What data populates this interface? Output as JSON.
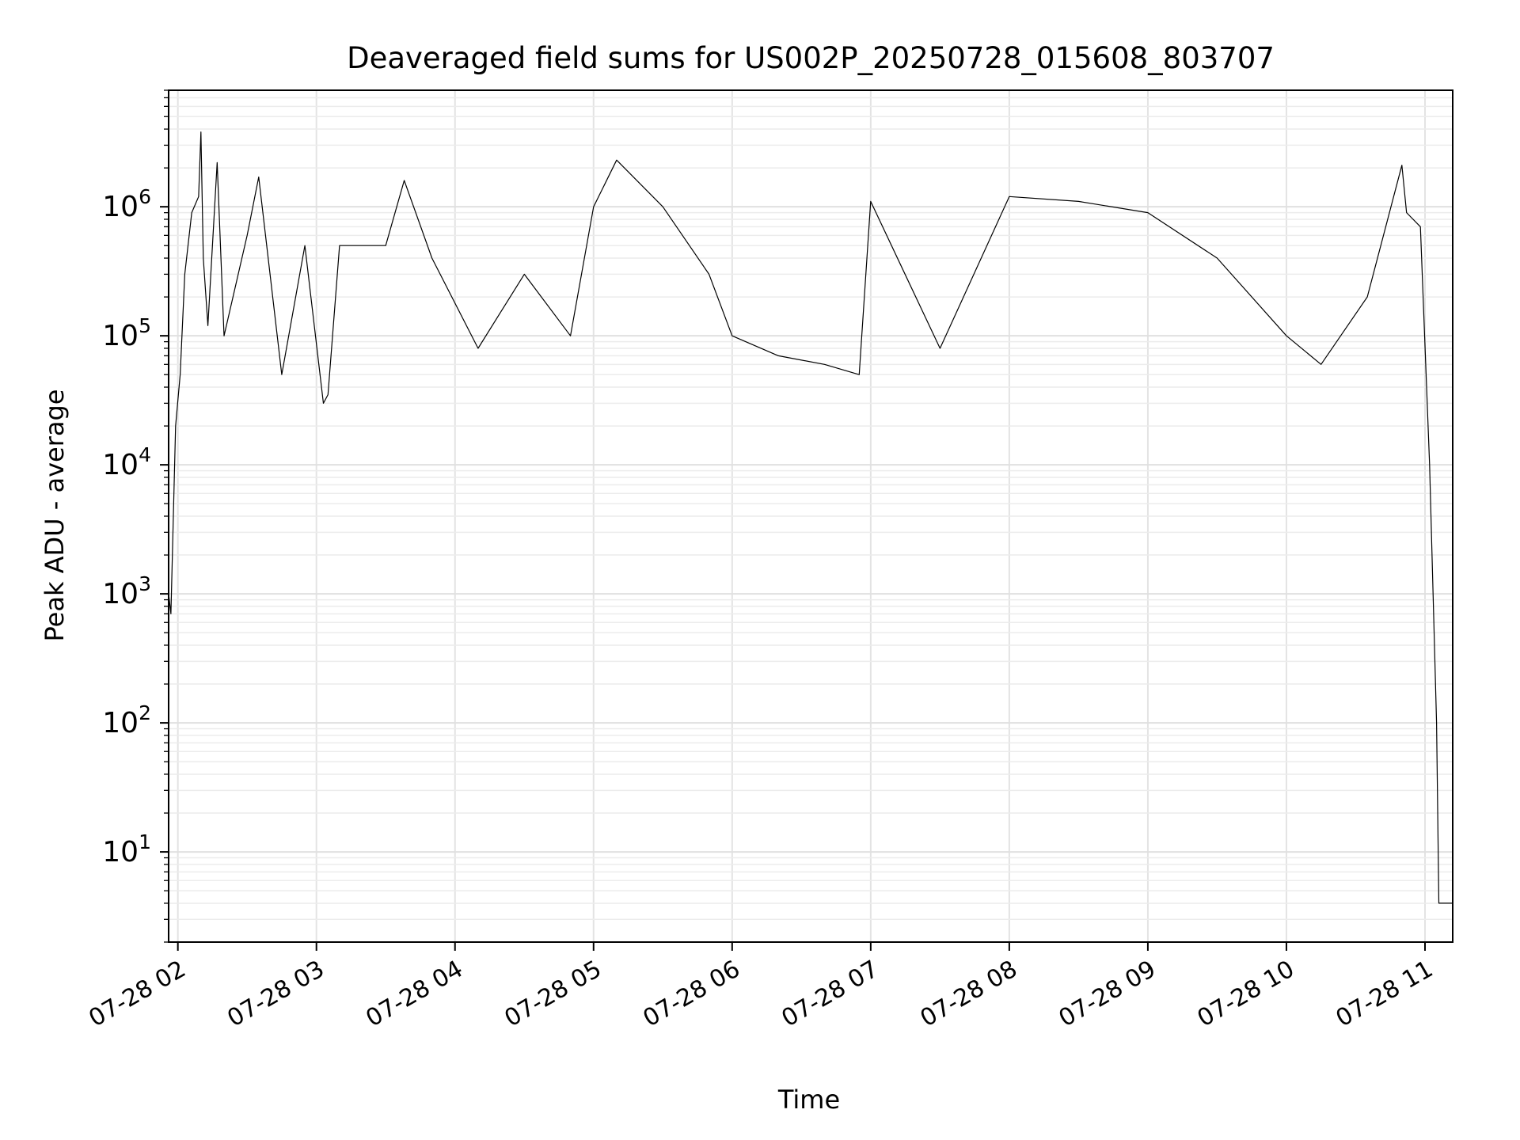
{
  "chart_data": {
    "type": "line",
    "title": "Deaveraged field sums for US002P_20250728_015608_803707",
    "xlabel": "Time",
    "ylabel": "Peak ADU - average",
    "y_scale": "log",
    "ylim": [
      2,
      8000000
    ],
    "xlim": [
      "2025-07-28 01:56",
      "2025-07-28 11:12"
    ],
    "grid": true,
    "line_color": "#000000",
    "x_ticks": [
      {
        "label": "07-28 02",
        "value": "2025-07-28 02:00"
      },
      {
        "label": "07-28 03",
        "value": "2025-07-28 03:00"
      },
      {
        "label": "07-28 04",
        "value": "2025-07-28 04:00"
      },
      {
        "label": "07-28 05",
        "value": "2025-07-28 05:00"
      },
      {
        "label": "07-28 06",
        "value": "2025-07-28 06:00"
      },
      {
        "label": "07-28 07",
        "value": "2025-07-28 07:00"
      },
      {
        "label": "07-28 08",
        "value": "2025-07-28 08:00"
      },
      {
        "label": "07-28 09",
        "value": "2025-07-28 09:00"
      },
      {
        "label": "07-28 10",
        "value": "2025-07-28 10:00"
      },
      {
        "label": "07-28 11",
        "value": "2025-07-28 11:00"
      }
    ],
    "y_ticks": [
      {
        "base": "10",
        "exp": "1",
        "value": 10
      },
      {
        "base": "10",
        "exp": "2",
        "value": 100
      },
      {
        "base": "10",
        "exp": "3",
        "value": 1000
      },
      {
        "base": "10",
        "exp": "4",
        "value": 10000
      },
      {
        "base": "10",
        "exp": "5",
        "value": 100000
      },
      {
        "base": "10",
        "exp": "6",
        "value": 1000000
      }
    ],
    "series": [
      {
        "points": [
          [
            "2025-07-28 01:56",
            100000
          ],
          [
            "2025-07-28 01:56",
            1000
          ],
          [
            "2025-07-28 01:57",
            700
          ],
          [
            "2025-07-28 01:59",
            20000
          ],
          [
            "2025-07-28 02:01",
            50000
          ],
          [
            "2025-07-28 02:03",
            300000
          ],
          [
            "2025-07-28 02:06",
            900000
          ],
          [
            "2025-07-28 02:09",
            1200000
          ],
          [
            "2025-07-28 02:10",
            3800000
          ],
          [
            "2025-07-28 02:11",
            400000
          ],
          [
            "2025-07-28 02:13",
            120000
          ],
          [
            "2025-07-28 02:17",
            2200000
          ],
          [
            "2025-07-28 02:20",
            100000
          ],
          [
            "2025-07-28 02:30",
            600000
          ],
          [
            "2025-07-28 02:35",
            1700000
          ],
          [
            "2025-07-28 02:45",
            50000
          ],
          [
            "2025-07-28 02:55",
            500000
          ],
          [
            "2025-07-28 03:03",
            30000
          ],
          [
            "2025-07-28 03:05",
            35000
          ],
          [
            "2025-07-28 03:10",
            500000
          ],
          [
            "2025-07-28 03:30",
            500000
          ],
          [
            "2025-07-28 03:38",
            1600000
          ],
          [
            "2025-07-28 03:50",
            400000
          ],
          [
            "2025-07-28 04:10",
            80000
          ],
          [
            "2025-07-28 04:30",
            300000
          ],
          [
            "2025-07-28 04:50",
            100000
          ],
          [
            "2025-07-28 05:00",
            1000000
          ],
          [
            "2025-07-28 05:10",
            2300000
          ],
          [
            "2025-07-28 05:30",
            1000000
          ],
          [
            "2025-07-28 05:50",
            300000
          ],
          [
            "2025-07-28 06:00",
            100000
          ],
          [
            "2025-07-28 06:20",
            70000
          ],
          [
            "2025-07-28 06:40",
            60000
          ],
          [
            "2025-07-28 06:55",
            50000
          ],
          [
            "2025-07-28 07:00",
            1100000
          ],
          [
            "2025-07-28 07:30",
            80000
          ],
          [
            "2025-07-28 08:00",
            1200000
          ],
          [
            "2025-07-28 08:30",
            1100000
          ],
          [
            "2025-07-28 09:00",
            900000
          ],
          [
            "2025-07-28 09:30",
            400000
          ],
          [
            "2025-07-28 10:00",
            100000
          ],
          [
            "2025-07-28 10:15",
            60000
          ],
          [
            "2025-07-28 10:35",
            200000
          ],
          [
            "2025-07-28 10:50",
            2100000
          ],
          [
            "2025-07-28 10:52",
            900000
          ],
          [
            "2025-07-28 10:58",
            700000
          ],
          [
            "2025-07-28 11:02",
            10000
          ],
          [
            "2025-07-28 11:05",
            100
          ],
          [
            "2025-07-28 11:06",
            4
          ],
          [
            "2025-07-28 11:12",
            4
          ]
        ]
      }
    ]
  }
}
